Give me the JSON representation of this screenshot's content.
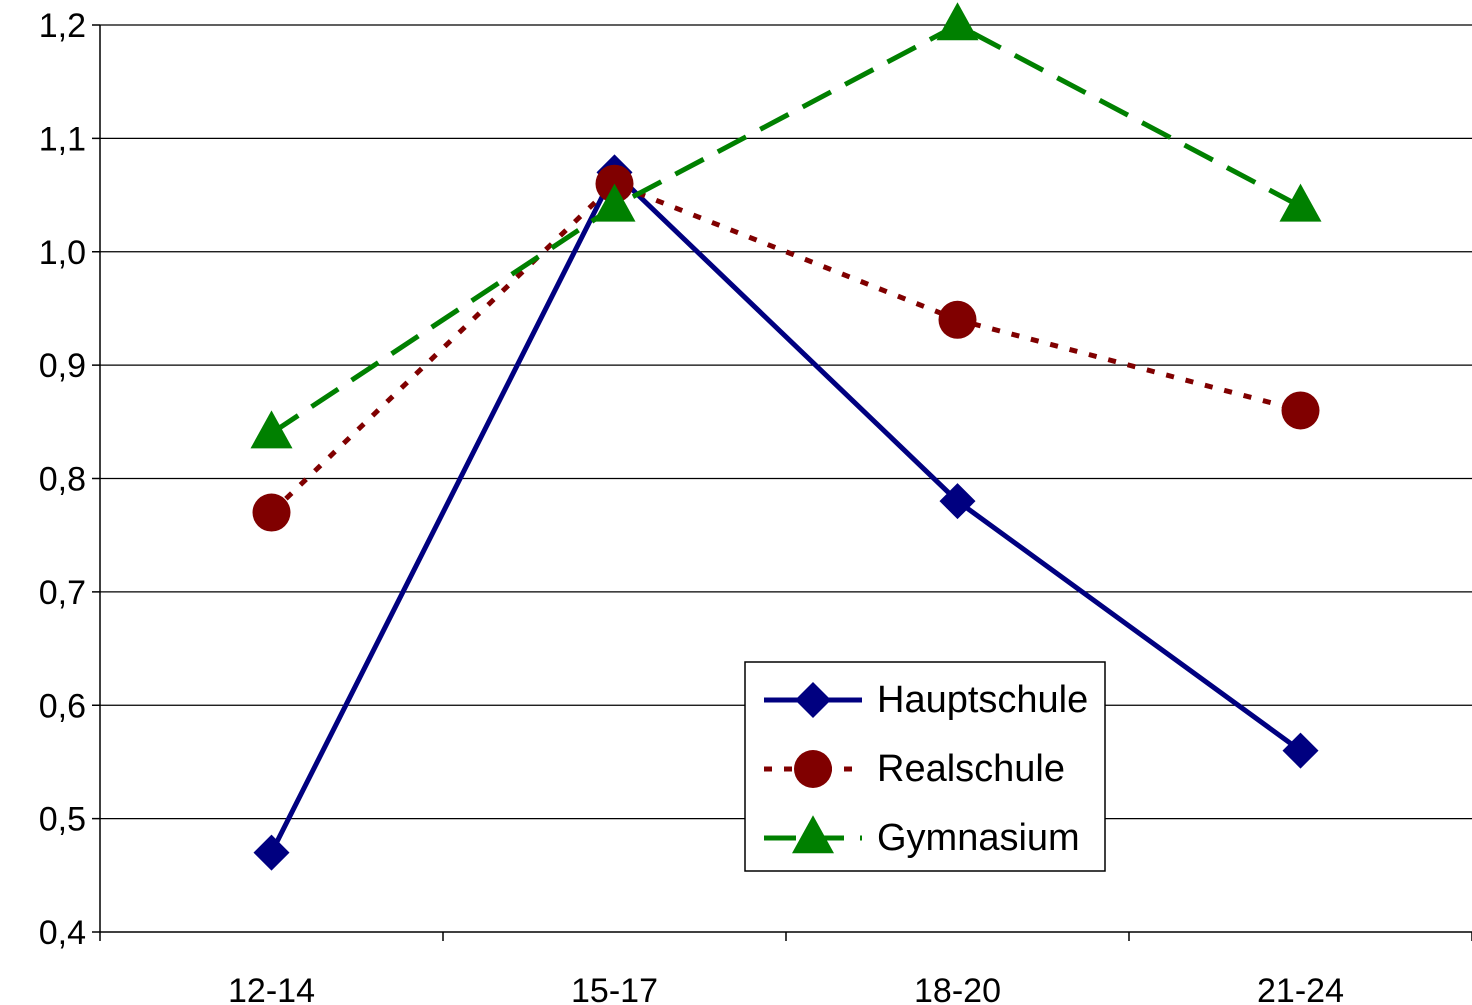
{
  "chart_data": {
    "type": "line",
    "title": "",
    "xlabel": "",
    "ylabel": "",
    "categories": [
      "12-14",
      "15-17",
      "18-20",
      "21-24"
    ],
    "ylim": [
      0.4,
      1.2
    ],
    "yticks": [
      0.4,
      0.5,
      0.6,
      0.7,
      0.8,
      0.9,
      1.0,
      1.1,
      1.2
    ],
    "ytick_labels": [
      "0,4",
      "0,5",
      "0,6",
      "0,7",
      "0,8",
      "0,9",
      "1,0",
      "1,1",
      "1,2"
    ],
    "grid": true,
    "legend_position": "lower-center-right",
    "series": [
      {
        "name": "Hauptschule",
        "values": [
          0.47,
          1.07,
          0.78,
          0.56
        ],
        "color": "#000080",
        "marker": "diamond",
        "dash": "solid"
      },
      {
        "name": "Realschule",
        "values": [
          0.77,
          1.06,
          0.94,
          0.86
        ],
        "color": "#800000",
        "marker": "circle",
        "dash": "dotted"
      },
      {
        "name": "Gymnasium",
        "values": [
          0.84,
          1.04,
          1.2,
          1.04
        ],
        "color": "#008000",
        "marker": "triangle",
        "dash": "dashed"
      }
    ]
  }
}
